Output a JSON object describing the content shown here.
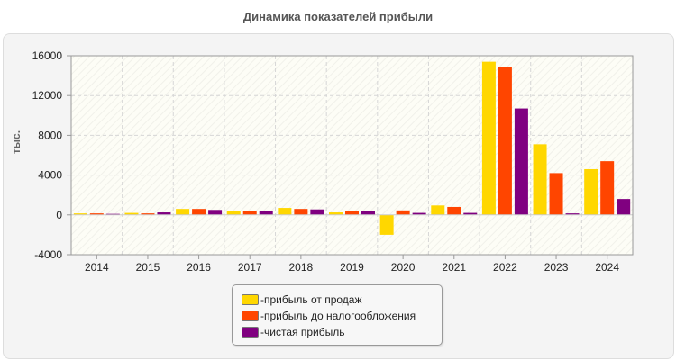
{
  "chart_data": {
    "type": "bar",
    "title": "Динамика показателей прибыли",
    "ylabel": "тыс.",
    "xlabel": "",
    "ylim": [
      -4000,
      16000
    ],
    "yticks": [
      -4000,
      0,
      4000,
      8000,
      12000,
      16000
    ],
    "categories": [
      "2014",
      "2015",
      "2016",
      "2017",
      "2018",
      "2019",
      "2020",
      "2021",
      "2022",
      "2023",
      "2024"
    ],
    "series": [
      {
        "name": "прибыль от продаж",
        "color": "#ffd700",
        "values": [
          150,
          200,
          600,
          400,
          700,
          250,
          -2000,
          950,
          15400,
          7100,
          4600
        ]
      },
      {
        "name": "прибыль до налогообложения",
        "color": "#ff4500",
        "values": [
          150,
          150,
          600,
          400,
          600,
          400,
          450,
          800,
          14900,
          4200,
          5400
        ]
      },
      {
        "name": "чистая прибыль",
        "color": "#800080",
        "values": [
          100,
          250,
          500,
          350,
          550,
          350,
          200,
          200,
          10700,
          150,
          1600
        ]
      }
    ],
    "grid": true,
    "legend_position": "bottom"
  }
}
